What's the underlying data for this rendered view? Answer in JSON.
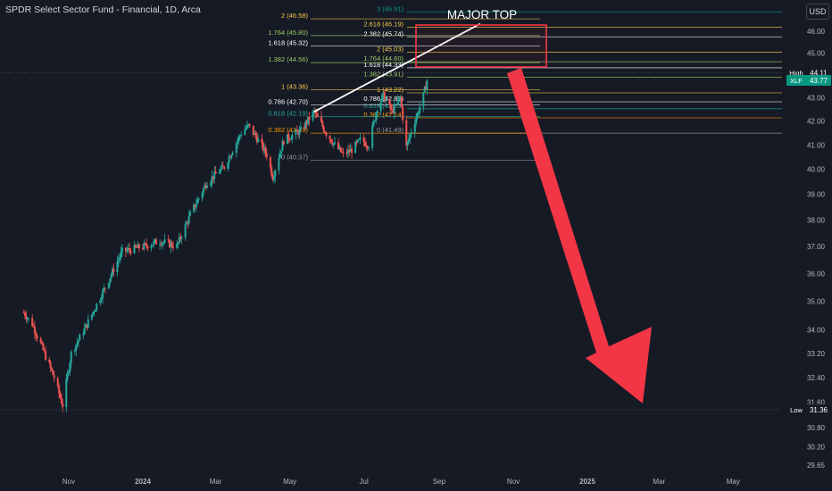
{
  "header": {
    "title": "SPDR Select Sector Fund - Financial, 1D, Arca",
    "currency": "USD"
  },
  "colors": {
    "background": "#161a25",
    "up": "#26a69a",
    "down": "#ef5350",
    "arrow": "#f23645",
    "box": "#f23645",
    "trend": "#ffffff"
  },
  "annotations": {
    "major_top": "MAJOR TOP"
  },
  "badges": {
    "high_label": "High",
    "high_value": "44.11",
    "last_label": "XLF",
    "last_value": "43.77",
    "low_label": "Low",
    "low_value": "31.36"
  },
  "chart_data": {
    "type": "candlestick",
    "title": "SPDR Select Sector Fund - Financial, 1D, Arca",
    "y_axis": {
      "scale": "log",
      "ticks": [
        "46.00",
        "45.00",
        "44.00",
        "43.00",
        "42.00",
        "41.00",
        "40.00",
        "39.00",
        "38.00",
        "37.00",
        "36.00",
        "35.00",
        "34.00",
        "33.20",
        "32.40",
        "31.60",
        "30.80",
        "30.20",
        "29.65"
      ],
      "range": [
        29.4,
        47.3
      ]
    },
    "x_axis": {
      "ticks": [
        "Nov",
        "2024",
        "Mar",
        "May",
        "Jul",
        "Sep",
        "Nov",
        "2025",
        "Mar",
        "May"
      ]
    },
    "price_path": [
      [
        "2023-09-25",
        34.6
      ],
      [
        "2023-10-02",
        34.2
      ],
      [
        "2023-10-10",
        33.4
      ],
      [
        "2023-10-20",
        32.4
      ],
      [
        "2023-10-27",
        31.5
      ],
      [
        "2023-11-03",
        33.2
      ],
      [
        "2023-11-15",
        34.1
      ],
      [
        "2023-12-01",
        35.5
      ],
      [
        "2023-12-15",
        36.8
      ],
      [
        "2024-01-02",
        37.0
      ],
      [
        "2024-01-15",
        37.2
      ],
      [
        "2024-01-29",
        37.0
      ],
      [
        "2024-02-09",
        38.2
      ],
      [
        "2024-02-23",
        39.5
      ],
      [
        "2024-03-08",
        40.1
      ],
      [
        "2024-03-22",
        41.5
      ],
      [
        "2024-03-28",
        41.8
      ],
      [
        "2024-04-05",
        41.2
      ],
      [
        "2024-04-12",
        40.6
      ],
      [
        "2024-04-17",
        39.7
      ],
      [
        "2024-04-26",
        41.2
      ],
      [
        "2024-05-10",
        41.6
      ],
      [
        "2024-05-21",
        42.4
      ],
      [
        "2024-05-31",
        41.5
      ],
      [
        "2024-06-07",
        41.0
      ],
      [
        "2024-06-14",
        40.6
      ],
      [
        "2024-06-21",
        40.8
      ],
      [
        "2024-06-28",
        41.2
      ],
      [
        "2024-07-05",
        41.0
      ],
      [
        "2024-07-12",
        42.6
      ],
      [
        "2024-07-17",
        43.1
      ],
      [
        "2024-07-24",
        42.4
      ],
      [
        "2024-07-31",
        43.0
      ],
      [
        "2024-08-05",
        40.9
      ],
      [
        "2024-08-09",
        41.6
      ],
      [
        "2024-08-14",
        42.3
      ],
      [
        "2024-08-19",
        43.1
      ],
      [
        "2024-08-22",
        43.77
      ]
    ],
    "high": 44.11,
    "low": 31.36,
    "last": 43.77,
    "fib_levels_right": [
      {
        "label": "3 (46.91)",
        "value": 46.91
      },
      {
        "label": "2.618 (46.19)",
        "value": 46.19
      },
      {
        "label": "2.382 (45.74)",
        "value": 45.74
      },
      {
        "label": "2 (45.03)",
        "value": 45.03
      },
      {
        "label": "1.764 (44.60)",
        "value": 44.6
      },
      {
        "label": "1.618 (44.33)",
        "value": 44.33
      },
      {
        "label": "1.382 (43.91)",
        "value": 43.91
      },
      {
        "label": "1 (43.22)",
        "value": 43.22
      },
      {
        "label": "0.786 (42.83)",
        "value": 42.83
      },
      {
        "label": "0.618 (42.53)",
        "value": 42.53
      },
      {
        "label": "0.382 (42.14)",
        "value": 42.14
      },
      {
        "label": "0 (41.49)",
        "value": 41.49
      }
    ],
    "fib_levels_left": [
      {
        "label": "2 (46.58)",
        "value": 46.58
      },
      {
        "label": "1.764 (45.80)",
        "value": 45.8
      },
      {
        "label": "1.618 (45.32)",
        "value": 45.32
      },
      {
        "label": "1.382 (44.56)",
        "value": 44.56
      },
      {
        "label": "1 (43.36)",
        "value": 43.36
      },
      {
        "label": "0.786 (42.70)",
        "value": 42.7
      },
      {
        "label": "0.618 (42.19)",
        "value": 42.19
      },
      {
        "label": "0.382 (41.49)",
        "value": 41.49
      },
      {
        "label": "0 (40.37)",
        "value": 40.37
      }
    ],
    "grid": false,
    "legend": "none"
  }
}
